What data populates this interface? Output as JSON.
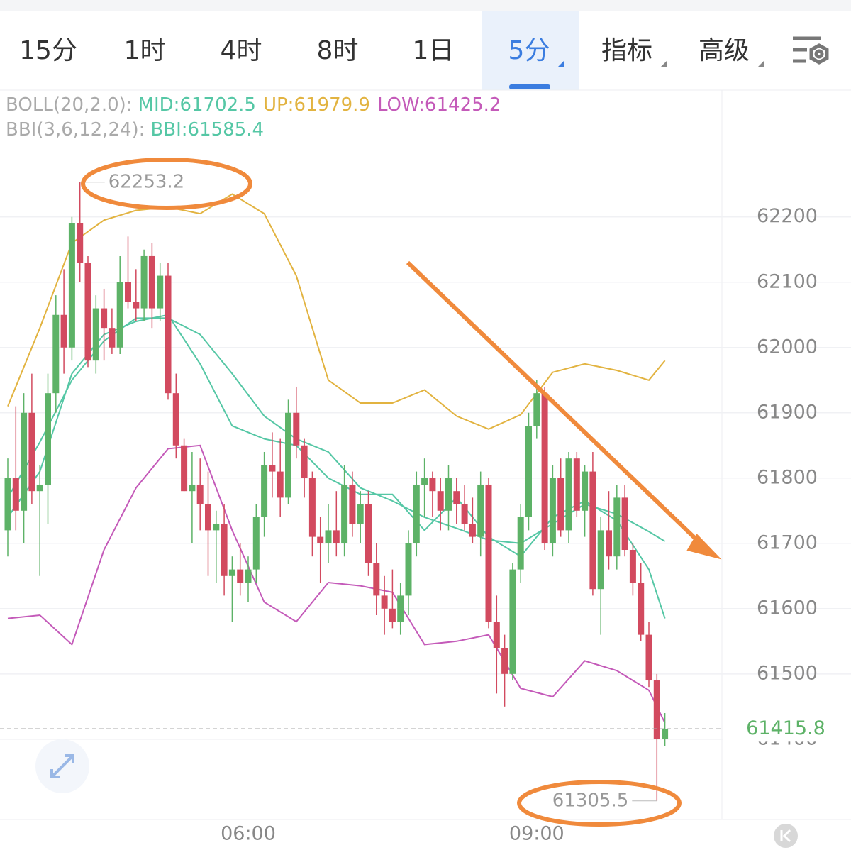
{
  "chart_data": {
    "type": "candlestick",
    "tabs": [
      "15分",
      "1时",
      "4时",
      "8时",
      "1日",
      "5分",
      "指标",
      "高级"
    ],
    "active_tab": 5,
    "indicators": [
      {
        "label": "BOLL(20,2.0):",
        "items": [
          {
            "text": "MID:61702.5",
            "color": "#55c7a5"
          },
          {
            "text": "UP:61979.9",
            "color": "#e2b340"
          },
          {
            "text": "LOW:61425.2",
            "color": "#c45ab9"
          }
        ]
      },
      {
        "label": "BBI(3,6,12,24):",
        "items": [
          {
            "text": "BBI:61585.4",
            "color": "#55c7a5"
          }
        ]
      }
    ],
    "up_color": "#5db267",
    "down_color": "#d24a5f",
    "categories": [
      null,
      null,
      null,
      null,
      null,
      null,
      null,
      null,
      null,
      null,
      null,
      null,
      null,
      null,
      null,
      null,
      null,
      null,
      null,
      null,
      null,
      null,
      null,
      null,
      null,
      null,
      null,
      null,
      null,
      null,
      "06:00",
      null,
      null,
      null,
      null,
      null,
      null,
      null,
      null,
      null,
      null,
      null,
      null,
      null,
      null,
      null,
      null,
      null,
      null,
      null,
      null,
      null,
      null,
      null,
      null,
      null,
      null,
      null,
      null,
      null,
      null,
      null,
      null,
      null,
      null,
      null,
      "09:00",
      null,
      null,
      null,
      null,
      null,
      null,
      null,
      null,
      null,
      null,
      null,
      null,
      null,
      null,
      null,
      null
    ],
    "ohlc": [
      [
        61720,
        61830,
        61680,
        61800
      ],
      [
        61800,
        61910,
        61720,
        61750
      ],
      [
        61750,
        61930,
        61700,
        61900
      ],
      [
        61900,
        61960,
        61760,
        61780
      ],
      [
        61780,
        61820,
        61650,
        61790
      ],
      [
        61790,
        61960,
        61730,
        61930
      ],
      [
        61930,
        62080,
        61900,
        62050
      ],
      [
        62050,
        62120,
        61960,
        62000
      ],
      [
        62000,
        62200,
        61980,
        62190
      ],
      [
        62190,
        62253.2,
        62100,
        62130
      ],
      [
        62130,
        62140,
        61970,
        61980
      ],
      [
        61980,
        62080,
        61960,
        62060
      ],
      [
        62060,
        62090,
        61980,
        62030
      ],
      [
        62030,
        62060,
        61990,
        62000
      ],
      [
        62000,
        62140,
        61990,
        62100
      ],
      [
        62100,
        62170,
        62060,
        62070
      ],
      [
        62070,
        62120,
        62040,
        62060
      ],
      [
        62060,
        62150,
        62040,
        62140
      ],
      [
        62140,
        62160,
        62030,
        62060
      ],
      [
        62060,
        62130,
        62040,
        62110
      ],
      [
        62110,
        62130,
        61920,
        61930
      ],
      [
        61930,
        61960,
        61830,
        61850
      ],
      [
        61850,
        61860,
        61780,
        61780
      ],
      [
        61780,
        61840,
        61700,
        61790
      ],
      [
        61790,
        61830,
        61720,
        61760
      ],
      [
        61760,
        61810,
        61650,
        61720
      ],
      [
        61720,
        61750,
        61640,
        61730
      ],
      [
        61730,
        61760,
        61620,
        61650
      ],
      [
        61650,
        61680,
        61580,
        61660
      ],
      [
        61660,
        61700,
        61620,
        61640
      ],
      [
        61640,
        61680,
        61610,
        61660
      ],
      [
        61660,
        61760,
        61640,
        61740
      ],
      [
        61740,
        61840,
        61710,
        61820
      ],
      [
        61820,
        61870,
        61770,
        61810
      ],
      [
        61810,
        61860,
        61740,
        61770
      ],
      [
        61770,
        61920,
        61760,
        61900
      ],
      [
        61900,
        61940,
        61830,
        61850
      ],
      [
        61850,
        61860,
        61770,
        61800
      ],
      [
        61800,
        61810,
        61680,
        61710
      ],
      [
        61710,
        61740,
        61640,
        61700
      ],
      [
        61700,
        61760,
        61670,
        61720
      ],
      [
        61720,
        61780,
        61680,
        61700
      ],
      [
        61700,
        61820,
        61680,
        61790
      ],
      [
        61790,
        61810,
        61710,
        61730
      ],
      [
        61730,
        61780,
        61700,
        61760
      ],
      [
        61760,
        61780,
        61650,
        61670
      ],
      [
        61670,
        61700,
        61590,
        61620
      ],
      [
        61620,
        61650,
        61560,
        61600
      ],
      [
        61600,
        61660,
        61570,
        61580
      ],
      [
        61580,
        61640,
        61560,
        61620
      ],
      [
        61620,
        61720,
        61590,
        61700
      ],
      [
        61700,
        61810,
        61680,
        61790
      ],
      [
        61790,
        61830,
        61740,
        61800
      ],
      [
        61800,
        61810,
        61740,
        61780
      ],
      [
        61780,
        61800,
        61720,
        61750
      ],
      [
        61750,
        61820,
        61720,
        61800
      ],
      [
        61780,
        61800,
        61730,
        61760
      ],
      [
        61760,
        61790,
        61720,
        61730
      ],
      [
        61730,
        61770,
        61700,
        61710
      ],
      [
        61710,
        61810,
        61680,
        61790
      ],
      [
        61790,
        61800,
        61570,
        61580
      ],
      [
        61580,
        61620,
        61470,
        61540
      ],
      [
        61540,
        61560,
        61450,
        61500
      ],
      [
        61500,
        61670,
        61490,
        61660
      ],
      [
        61660,
        61760,
        61640,
        61740
      ],
      [
        61740,
        61900,
        61720,
        61880
      ],
      [
        61880,
        61950,
        61860,
        61930
      ],
      [
        61930,
        61940,
        61690,
        61700
      ],
      [
        61700,
        61820,
        61680,
        61800
      ],
      [
        61800,
        61830,
        61710,
        61720
      ],
      [
        61720,
        61840,
        61700,
        61830
      ],
      [
        61830,
        61840,
        61740,
        61750
      ],
      [
        61750,
        61820,
        61710,
        61810
      ],
      [
        61810,
        61840,
        61620,
        61630
      ],
      [
        61630,
        61740,
        61560,
        61720
      ],
      [
        61720,
        61780,
        61660,
        61680
      ],
      [
        61680,
        61790,
        61660,
        61770
      ],
      [
        61770,
        61790,
        61680,
        61690
      ],
      [
        61690,
        61700,
        61620,
        61640
      ],
      [
        61640,
        61670,
        61550,
        61560
      ],
      [
        61560,
        61580,
        61480,
        61490
      ],
      [
        61490,
        61500,
        61305.5,
        61400
      ],
      [
        61400,
        61440,
        61390,
        61415.8
      ]
    ],
    "lines": [
      {
        "color": "#e2b340",
        "x": [
          0,
          4,
          8,
          12,
          16,
          20,
          24,
          28,
          32,
          36,
          40,
          44,
          48,
          52,
          56,
          60,
          64,
          68,
          72,
          76,
          80,
          82
        ],
        "values": [
          61910,
          62030,
          62160,
          62195,
          62210,
          62215,
          62205,
          62235,
          62205,
          62110,
          61950,
          61915,
          61915,
          61935,
          61895,
          61875,
          61897,
          61962,
          61975,
          61965,
          61950,
          61980
        ]
      },
      {
        "color": "#55c7a5",
        "x": [
          0,
          4,
          8,
          12,
          16,
          20,
          24,
          28,
          32,
          36,
          40,
          44,
          48,
          52,
          56,
          60,
          64,
          68,
          72,
          76,
          80,
          82
        ],
        "values": [
          61770,
          61855,
          61950,
          62010,
          62045,
          62045,
          62020,
          61960,
          61895,
          61860,
          61840,
          61785,
          61765,
          61740,
          61723,
          61705,
          61700,
          61730,
          61760,
          61745,
          61718,
          61703
        ]
      },
      {
        "color": "#c45ab9",
        "x": [
          0,
          4,
          8,
          12,
          16,
          20,
          24,
          28,
          32,
          36,
          40,
          44,
          48,
          52,
          56,
          60,
          64,
          68,
          72,
          76,
          80,
          82
        ],
        "values": [
          61585,
          61590,
          61545,
          61690,
          61785,
          61845,
          61850,
          61720,
          61610,
          61580,
          61640,
          61635,
          61625,
          61545,
          61550,
          61560,
          61478,
          61465,
          61520,
          61505,
          61475,
          61425
        ]
      },
      {
        "color": "#55c7a5",
        "x": [
          0,
          4,
          8,
          12,
          16,
          20,
          24,
          28,
          32,
          36,
          40,
          44,
          48,
          52,
          56,
          60,
          64,
          68,
          72,
          76,
          80,
          82
        ],
        "values": [
          61740,
          61810,
          61960,
          62020,
          62040,
          62050,
          61975,
          61880,
          61860,
          61850,
          61800,
          61775,
          61775,
          61720,
          61770,
          61710,
          61680,
          61740,
          61765,
          61735,
          61660,
          61585
        ]
      }
    ],
    "ylim": [
      61277,
      62391
    ],
    "yticks": [
      61400,
      61500,
      61600,
      61700,
      61800,
      61900,
      62000,
      62100,
      62200
    ],
    "grid": true
  }
}
